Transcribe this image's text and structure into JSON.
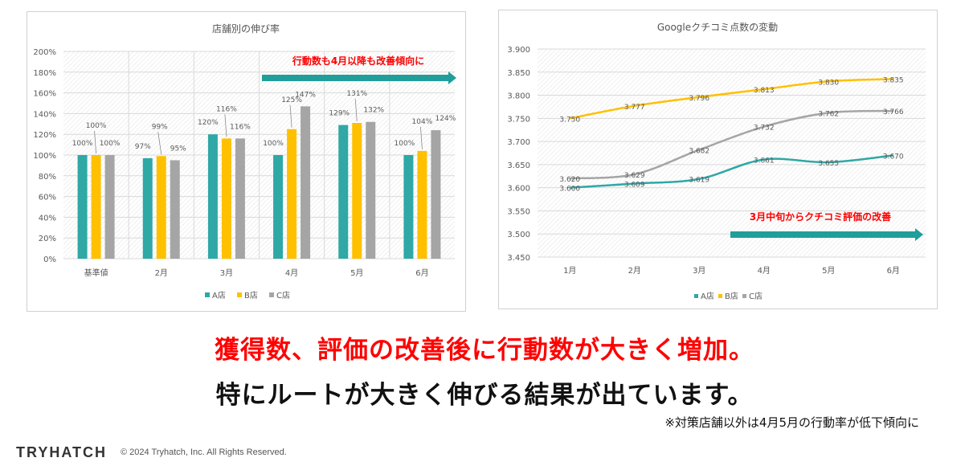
{
  "colors": {
    "a_store": "#2fa8a6",
    "b_store": "#ffc000",
    "c_store": "#a5a5a5",
    "arrow": "#1f9e9a",
    "accent_red": "#ff0000"
  },
  "chart_data": [
    {
      "type": "bar",
      "title": "店舗別の伸び率",
      "categories": [
        "基準値",
        "2月",
        "3月",
        "4月",
        "5月",
        "6月"
      ],
      "series": [
        {
          "name": "A店",
          "values": [
            100,
            97,
            120,
            100,
            129,
            100
          ],
          "labels": [
            "100%",
            "97%",
            "120%",
            "100%",
            "129%",
            "100%"
          ]
        },
        {
          "name": "B店",
          "values": [
            100,
            99,
            116,
            125,
            131,
            104
          ],
          "labels": [
            "100%",
            "99%",
            "116%",
            "125%",
            "131%",
            "104%"
          ]
        },
        {
          "name": "C店",
          "values": [
            100,
            95,
            116,
            147,
            132,
            124
          ],
          "labels": [
            "100%",
            "95%",
            "116%",
            "147%",
            "132%",
            "124%"
          ]
        }
      ],
      "ylim": [
        0,
        200
      ],
      "y_ticks": [
        "0%",
        "20%",
        "40%",
        "60%",
        "80%",
        "100%",
        "120%",
        "140%",
        "160%",
        "180%",
        "200%"
      ],
      "grid": true,
      "legend": "bottom",
      "annotation": "行動数も4月以降も改善傾向に"
    },
    {
      "type": "line",
      "title": "Googleクチコミ点数の変動",
      "categories": [
        "1月",
        "2月",
        "3月",
        "4月",
        "5月",
        "6月"
      ],
      "series": [
        {
          "name": "A店",
          "values": [
            3.6,
            3.609,
            3.619,
            3.661,
            3.655,
            3.67
          ],
          "labels": [
            "3.600",
            "3.609",
            "3.619",
            "3.661",
            "3.655",
            "3.670"
          ]
        },
        {
          "name": "B店",
          "values": [
            3.75,
            3.777,
            3.796,
            3.813,
            3.83,
            3.835
          ],
          "labels": [
            "3.750",
            "3.777",
            "3.796",
            "3.813",
            "3.830",
            "3.835"
          ]
        },
        {
          "name": "C店",
          "values": [
            3.62,
            3.629,
            3.682,
            3.732,
            3.762,
            3.766
          ],
          "labels": [
            "3.620",
            "3.629",
            "3.682",
            "3.732",
            "3.762",
            "3.766"
          ]
        }
      ],
      "ylim": [
        3.45,
        3.9
      ],
      "y_ticks": [
        "3.450",
        "3.500",
        "3.550",
        "3.600",
        "3.650",
        "3.700",
        "3.750",
        "3.800",
        "3.850",
        "3.900"
      ],
      "grid": true,
      "legend": "bottom",
      "annotation": "3月中旬からクチコミ評価の改善"
    }
  ],
  "headline": "獲得数、評価の改善後に行動数が大きく増加。",
  "subline": "特にルートが大きく伸びる結果が出ています。",
  "footnote": "※対策店舗以外は4月5月の行動率が低下傾向に",
  "footer": {
    "logo": "TRYHATCH",
    "copyright": "© 2024 Tryhatch, Inc. All Rights Reserved."
  }
}
